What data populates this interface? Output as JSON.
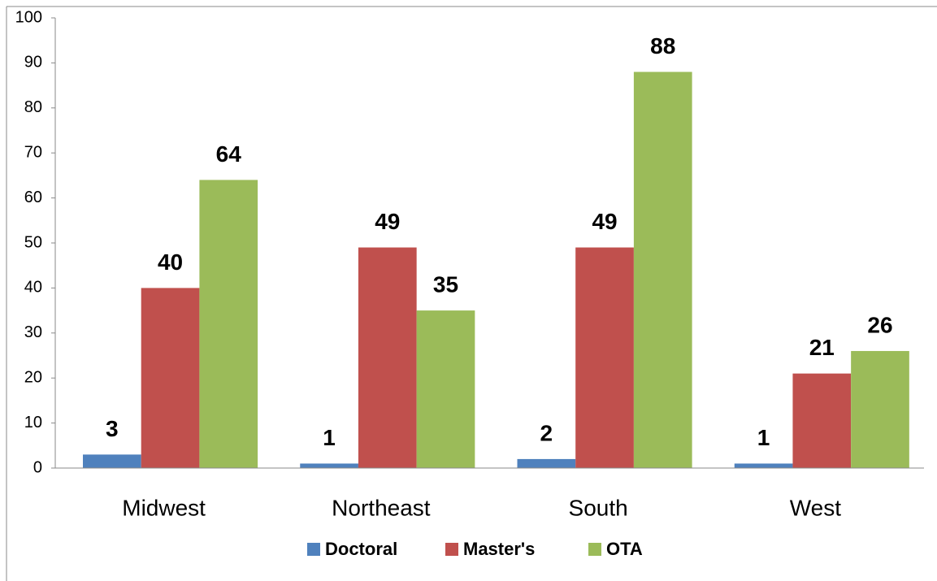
{
  "chart_data": {
    "type": "bar",
    "categories": [
      "Midwest",
      "Northeast",
      "South",
      "West"
    ],
    "series": [
      {
        "name": "Doctoral",
        "color": "#4f81bd",
        "values": [
          3,
          1,
          2,
          1
        ]
      },
      {
        "name": "Master's",
        "color": "#c0504d",
        "values": [
          40,
          49,
          49,
          21
        ]
      },
      {
        "name": "OTA",
        "color": "#9bbb59",
        "values": [
          64,
          35,
          88,
          26
        ]
      }
    ],
    "ylim": [
      0,
      100
    ],
    "yticks": [
      0,
      10,
      20,
      30,
      40,
      50,
      60,
      70,
      80,
      90,
      100
    ],
    "legend": "bottom",
    "grid": false
  }
}
